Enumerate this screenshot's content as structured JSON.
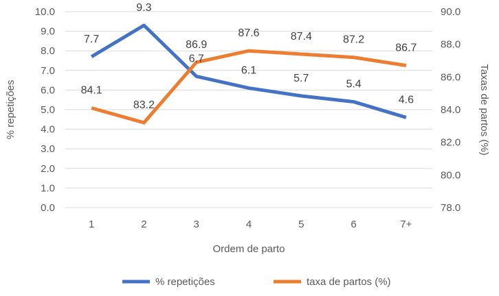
{
  "chart_data": {
    "type": "line",
    "categories": [
      "1",
      "2",
      "3",
      "4",
      "5",
      "6",
      "7+"
    ],
    "xlabel": "Ordem de parto",
    "ylabel": "% repetições",
    "y2label": "Taxas de partos (%)",
    "ylim": [
      0,
      10
    ],
    "yticks": [
      "0.0",
      "1.0",
      "2.0",
      "3.0",
      "4.0",
      "5.0",
      "6.0",
      "7.0",
      "8.0",
      "9.0",
      "10.0"
    ],
    "y2lim": [
      78,
      90
    ],
    "y2ticks": [
      "78.0",
      "80.0",
      "82.0",
      "84.0",
      "86.0",
      "88.0",
      "90.0"
    ],
    "grid": true,
    "legend": "bottom",
    "series": [
      {
        "name": "% repetições",
        "axis": "left",
        "color": "#4472C4",
        "values": [
          7.7,
          9.3,
          6.7,
          6.1,
          5.7,
          5.4,
          4.6
        ],
        "labels": [
          "7.7",
          "9.3",
          "6.7",
          "6.1",
          "5.7",
          "5.4",
          "4.6"
        ]
      },
      {
        "name": "taxa de partos (%)",
        "axis": "right",
        "color": "#ED7D31",
        "values": [
          84.1,
          83.2,
          86.9,
          87.6,
          87.4,
          87.2,
          86.7
        ],
        "labels": [
          "84.1",
          "83.2",
          "86.9",
          "87.6",
          "87.4",
          "87.2",
          "86.7"
        ]
      }
    ]
  }
}
